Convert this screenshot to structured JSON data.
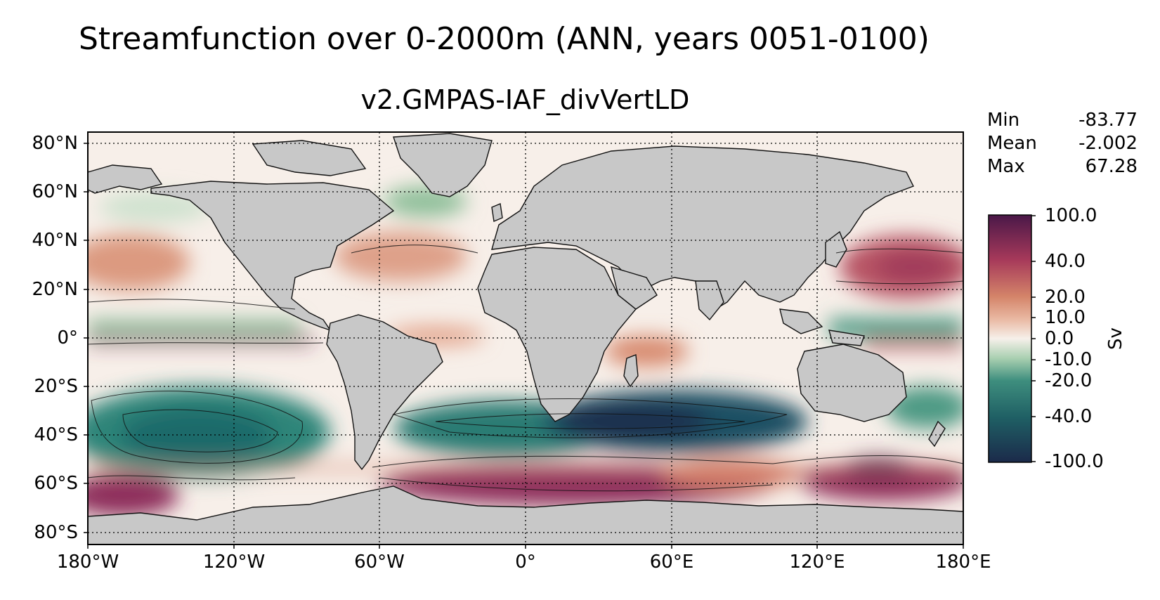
{
  "figure": {
    "title": "Streamfunction over 0-2000m (ANN, years 0051-0100)",
    "subtitle": "v2.GMPAS-IAF_divVertLD"
  },
  "map": {
    "projection": "plate-carree",
    "land_color": "#c8c8c8",
    "lat_labels": [
      "80°N",
      "60°N",
      "40°N",
      "20°N",
      "0°",
      "20°S",
      "40°S",
      "60°S",
      "80°S"
    ],
    "lon_labels": [
      "180°W",
      "120°W",
      "60°W",
      "0°",
      "60°E",
      "120°E",
      "180°E"
    ],
    "grid": "dotted"
  },
  "stats": {
    "min_label": "Min",
    "min_value": "-83.77",
    "mean_label": "Mean",
    "mean_value": "-2.002",
    "max_label": "Max",
    "max_value": "67.28"
  },
  "colorbar": {
    "units": "Sv",
    "ticks": [
      "100.0",
      "40.0",
      "20.0",
      "10.0",
      "0.0",
      "-10.0",
      "-20.0",
      "-40.0",
      "-100.0"
    ],
    "colors": [
      "#1b2a4a",
      "#1f5f64",
      "#3e8e7e",
      "#a8cfb0",
      "#f6f0ea",
      "#e9b8a2",
      "#d48469",
      "#a6395a",
      "#4a1848"
    ]
  }
}
